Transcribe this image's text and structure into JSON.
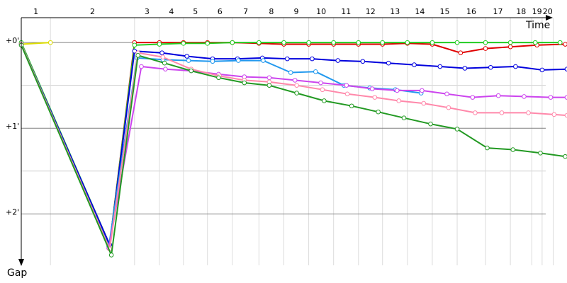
{
  "chart_data": {
    "type": "line",
    "x_label": "Time",
    "y_label": "Gap",
    "xlim": [
      0,
      6.36
    ],
    "ylim": [
      -0.29,
      2.6
    ],
    "yticks": [
      {
        "value": 0,
        "label": "+0'"
      },
      {
        "value": 1,
        "label": "+1'"
      },
      {
        "value": 2,
        "label": "+2'"
      }
    ],
    "minor_yticks": [
      0.5,
      1.5
    ],
    "grid": true,
    "categories": [
      "1",
      "2",
      "3",
      "4",
      "5",
      "6",
      "7",
      "8",
      "9",
      "10",
      "11",
      "12",
      "13",
      "14",
      "15",
      "16",
      "17",
      "18",
      "19",
      "20"
    ],
    "lap_ends": [
      0.34,
      1.32,
      1.61,
      1.89,
      2.17,
      2.46,
      2.77,
      3.06,
      3.35,
      3.64,
      3.93,
      4.21,
      4.5,
      4.79,
      5.08,
      5.41,
      5.7,
      5.95,
      6.07,
      6.2
    ],
    "lap_line_color": "#dcdcdc",
    "series": [
      {
        "color": "#dddd00",
        "x": [
          0,
          0.34
        ],
        "values": [
          0.02,
          0
        ]
      },
      {
        "color": "#e00000",
        "x": [
          0,
          1.03,
          1.32,
          1.61,
          1.89,
          2.17,
          2.46,
          2.77,
          3.06,
          3.35,
          3.64,
          3.93,
          4.21,
          4.5,
          4.79,
          5.12,
          5.41,
          5.7,
          6.01,
          6.34
        ],
        "values": [
          0.02,
          2.36,
          0,
          0,
          0,
          0,
          0,
          0.01,
          0.02,
          0.02,
          0.02,
          0.02,
          0.02,
          0.01,
          0.02,
          0.12,
          0.07,
          0.05,
          0.03,
          0.02
        ]
      },
      {
        "color": "#22cc22",
        "x": [
          0,
          1.03,
          1.32,
          1.61,
          1.89,
          2.17,
          2.46,
          2.77,
          3.06,
          3.35,
          3.64,
          3.93,
          4.21,
          4.5,
          4.79,
          5.08,
          5.41,
          5.7,
          5.99,
          6.28
        ],
        "values": [
          0,
          2.36,
          0.03,
          0.02,
          0.01,
          0.01,
          0,
          0,
          0,
          0,
          0,
          0,
          0,
          0,
          0,
          0,
          0,
          0,
          0,
          0
        ]
      },
      {
        "color": "#0000dd",
        "x": [
          0,
          1.03,
          1.32,
          1.64,
          1.93,
          2.23,
          2.52,
          2.81,
          3.1,
          3.39,
          3.69,
          3.98,
          4.28,
          4.58,
          4.88,
          5.17,
          5.47,
          5.76,
          6.07,
          6.36
        ],
        "values": [
          0.02,
          2.36,
          0.1,
          0.12,
          0.16,
          0.19,
          0.19,
          0.18,
          0.19,
          0.19,
          0.21,
          0.22,
          0.24,
          0.26,
          0.28,
          0.3,
          0.29,
          0.28,
          0.32,
          0.31
        ]
      },
      {
        "color": "#2299ee",
        "x": [
          0,
          1.02,
          1.35,
          1.65,
          1.95,
          2.23,
          2.53,
          2.82,
          3.14,
          3.43,
          3.76,
          4.06,
          4.36,
          4.66
        ],
        "values": [
          0.02,
          2.38,
          0.18,
          0.2,
          0.21,
          0.22,
          0.21,
          0.21,
          0.35,
          0.34,
          0.5,
          0.53,
          0.55,
          0.59
        ]
      },
      {
        "color": "#cc44ee",
        "x": [
          0,
          1.02,
          1.4,
          1.68,
          1.98,
          2.3,
          2.6,
          2.89,
          3.19,
          3.49,
          3.79,
          4.09,
          4.38,
          4.67,
          4.96,
          5.26,
          5.56,
          5.86,
          6.17,
          6.36
        ],
        "values": [
          0.02,
          2.4,
          0.28,
          0.31,
          0.33,
          0.37,
          0.4,
          0.41,
          0.44,
          0.47,
          0.5,
          0.54,
          0.56,
          0.56,
          0.6,
          0.64,
          0.62,
          0.63,
          0.64,
          0.64
        ]
      },
      {
        "color": "#ff88aa",
        "x": [
          0,
          1.03,
          1.36,
          1.65,
          1.98,
          2.31,
          2.6,
          2.89,
          3.21,
          3.51,
          3.8,
          4.12,
          4.4,
          4.69,
          4.98,
          5.29,
          5.6,
          5.91,
          6.21,
          6.36
        ],
        "values": [
          0.02,
          2.41,
          0.12,
          0.17,
          0.31,
          0.39,
          0.44,
          0.46,
          0.5,
          0.55,
          0.6,
          0.64,
          0.68,
          0.71,
          0.76,
          0.82,
          0.82,
          0.82,
          0.84,
          0.85
        ]
      },
      {
        "color": "#229922",
        "x": [
          0,
          1.05,
          1.36,
          1.67,
          1.98,
          2.3,
          2.6,
          2.89,
          3.21,
          3.53,
          3.85,
          4.16,
          4.46,
          4.77,
          5.08,
          5.43,
          5.73,
          6.05,
          6.34
        ],
        "values": [
          0.03,
          2.48,
          0.15,
          0.24,
          0.33,
          0.41,
          0.47,
          0.5,
          0.59,
          0.68,
          0.74,
          0.81,
          0.88,
          0.95,
          1.01,
          1.23,
          1.25,
          1.29,
          1.33
        ]
      }
    ]
  }
}
